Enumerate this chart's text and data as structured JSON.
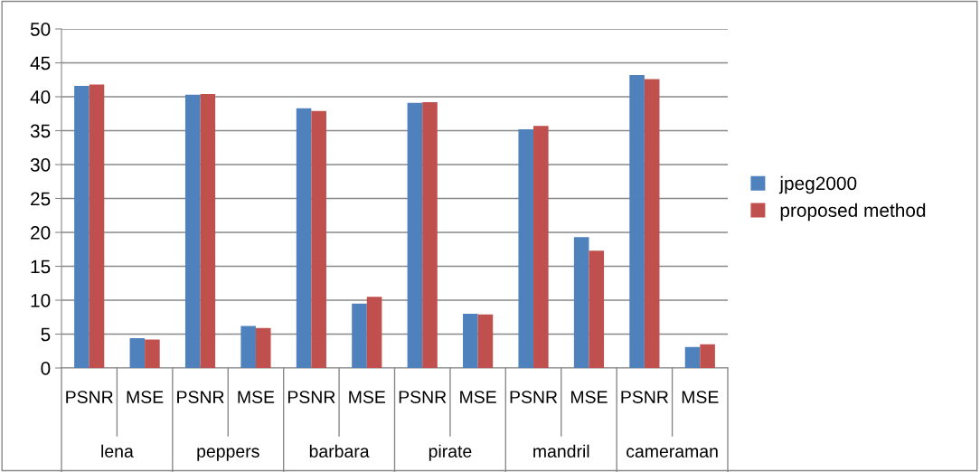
{
  "chart_data": {
    "type": "bar",
    "categories": [
      "PSNR",
      "MSE",
      "PSNR",
      "MSE",
      "PSNR",
      "MSE",
      "PSNR",
      "MSE",
      "PSNR",
      "MSE",
      "PSNR",
      "MSE"
    ],
    "annotations": [
      "lena",
      "peppers",
      "barbara",
      "pirate",
      "mandril",
      "cameraman"
    ],
    "series": [
      {
        "name": "jpeg2000",
        "color": "#4f81bd",
        "values": [
          41.6,
          4.4,
          40.3,
          6.2,
          38.3,
          9.5,
          39.1,
          8.0,
          35.2,
          19.3,
          43.2,
          3.1
        ]
      },
      {
        "name": "proposed method",
        "color": "#c0504d",
        "values": [
          41.8,
          4.2,
          40.4,
          5.9,
          37.9,
          10.5,
          39.2,
          7.9,
          35.7,
          17.3,
          42.6,
          3.5
        ]
      }
    ],
    "ylim": [
      0,
      50
    ],
    "yticks": [
      0,
      5,
      10,
      15,
      20,
      25,
      30,
      35,
      40,
      45,
      50
    ],
    "grid": "y",
    "legend": "right"
  }
}
